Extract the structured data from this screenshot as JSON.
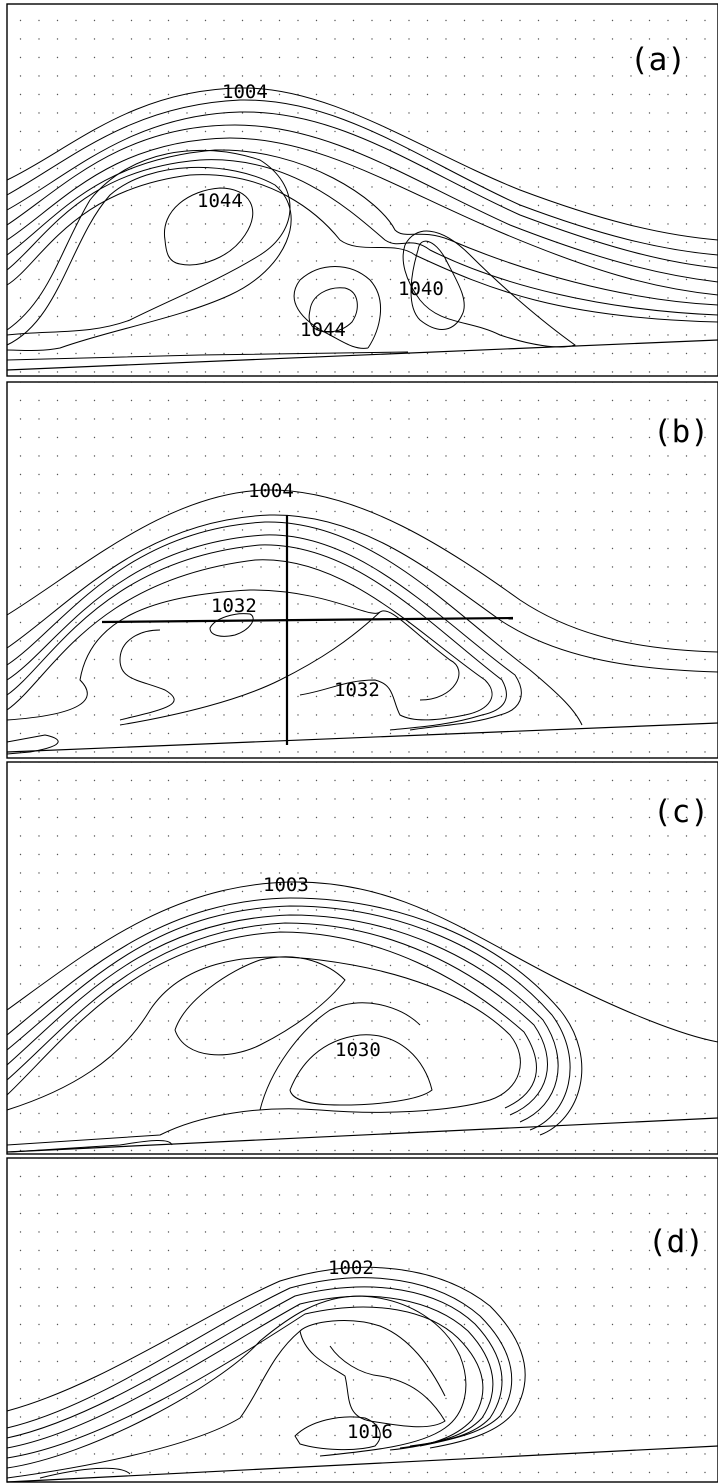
{
  "panels": [
    {
      "id": "a",
      "label": "(a)",
      "contour_labels": [
        "1004",
        "1044",
        "1040",
        "1044"
      ]
    },
    {
      "id": "b",
      "label": "(b)",
      "contour_labels": [
        "1004",
        "1032",
        "1032"
      ]
    },
    {
      "id": "c",
      "label": "(c)",
      "contour_labels": [
        "1003",
        "1030"
      ]
    },
    {
      "id": "d",
      "label": "(d)",
      "contour_labels": [
        "1002",
        "1016"
      ]
    }
  ],
  "colors": {
    "line": "#000000",
    "background": "#ffffff",
    "grid_dots": "#555555"
  }
}
